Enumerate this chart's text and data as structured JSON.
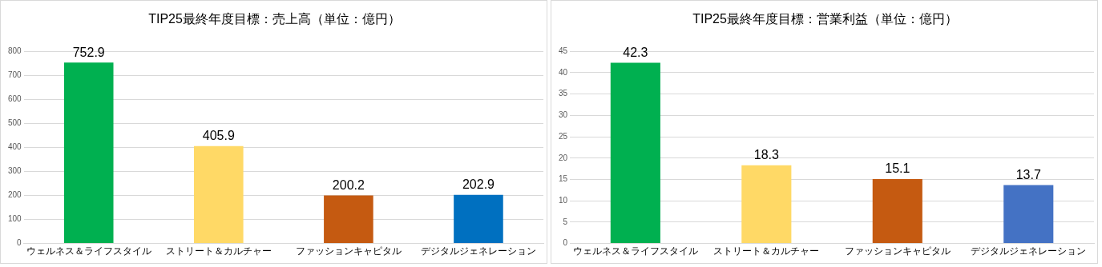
{
  "chart_data": [
    {
      "type": "bar",
      "title": "TIP25最終年度目標：売上高（単位：億円）",
      "categories": [
        "ウェルネス＆ライフスタイル",
        "ストリート＆カルチャー",
        "ファッションキャピタル",
        "デジタルジェネレーション"
      ],
      "values": [
        752.9,
        405.9,
        200.2,
        202.9
      ],
      "colors": [
        "#00b050",
        "#ffd966",
        "#c55a11",
        "#0070c0"
      ],
      "ylim": [
        0,
        800
      ],
      "yticks": [
        0,
        100,
        200,
        300,
        400,
        500,
        600,
        700,
        800
      ],
      "grid": "y",
      "data_labels": true,
      "legend": false
    },
    {
      "type": "bar",
      "title": "TIP25最終年度目標：営業利益（単位：億円）",
      "categories": [
        "ウェルネス＆ライフスタイル",
        "ストリート＆カルチャー",
        "ファッションキャピタル",
        "デジタルジェネレーション"
      ],
      "values": [
        42.3,
        18.3,
        15.1,
        13.7
      ],
      "colors": [
        "#00b050",
        "#ffd966",
        "#c55a11",
        "#4472c4"
      ],
      "ylim": [
        0,
        45
      ],
      "yticks": [
        0,
        5,
        10,
        15,
        20,
        25,
        30,
        35,
        40,
        45
      ],
      "grid": "y",
      "data_labels": true,
      "legend": false
    }
  ]
}
